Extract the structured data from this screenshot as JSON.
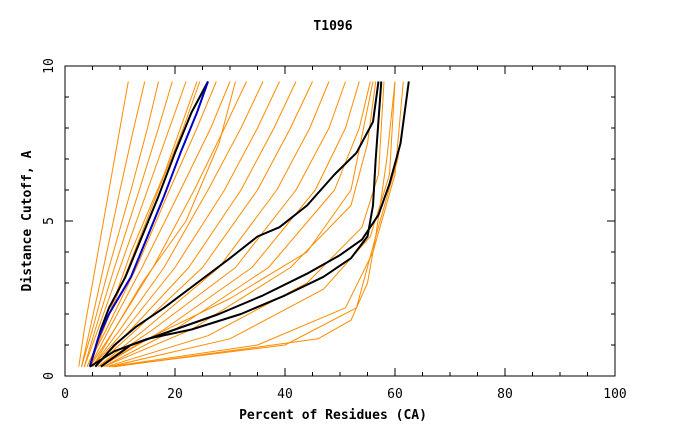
{
  "chart_data": {
    "type": "line",
    "title": "T1096",
    "xlabel": "Percent of Residues (CA)",
    "ylabel": "Distance Cutoff, A",
    "xlim": [
      0,
      100
    ],
    "ylim": [
      0,
      10
    ],
    "xticks": [
      0,
      20,
      40,
      60,
      80,
      100
    ],
    "xtick_labels": [
      "0",
      "20",
      "40",
      "60",
      "80",
      "100"
    ],
    "yticks": [
      0,
      5,
      10
    ],
    "ytick_labels": [
      "0",
      "5",
      "10"
    ],
    "grid": false,
    "colors": {
      "models": "#ff8c00",
      "highlight_black": "#000000",
      "highlight_blue": "#0000cc"
    },
    "series": [
      {
        "color": "#ff8c00",
        "points": [
          [
            2.5,
            0.3
          ],
          [
            3.5,
            1.5
          ],
          [
            5.5,
            3.5
          ],
          [
            8.0,
            6.0
          ],
          [
            10.0,
            8.0
          ],
          [
            11.5,
            9.5
          ]
        ]
      },
      {
        "color": "#ff8c00",
        "points": [
          [
            3.0,
            0.3
          ],
          [
            4.5,
            1.5
          ],
          [
            7.0,
            3.5
          ],
          [
            10.0,
            6.0
          ],
          [
            12.5,
            8.0
          ],
          [
            14.5,
            9.5
          ]
        ]
      },
      {
        "color": "#ff8c00",
        "points": [
          [
            3.0,
            0.3
          ],
          [
            5.0,
            1.5
          ],
          [
            8.0,
            3.5
          ],
          [
            12.0,
            6.0
          ],
          [
            15.0,
            8.0
          ],
          [
            17.0,
            9.5
          ]
        ]
      },
      {
        "color": "#ff8c00",
        "points": [
          [
            3.5,
            0.3
          ],
          [
            5.5,
            1.5
          ],
          [
            9.0,
            3.5
          ],
          [
            13.5,
            6.0
          ],
          [
            17.0,
            8.0
          ],
          [
            19.5,
            9.5
          ]
        ]
      },
      {
        "color": "#ff8c00",
        "points": [
          [
            3.5,
            0.3
          ],
          [
            6.0,
            1.5
          ],
          [
            10.0,
            3.5
          ],
          [
            15.0,
            6.0
          ],
          [
            19.0,
            8.0
          ],
          [
            22.0,
            9.5
          ]
        ]
      },
      {
        "color": "#ff8c00",
        "points": [
          [
            4.0,
            0.3
          ],
          [
            7.0,
            1.5
          ],
          [
            11.5,
            3.5
          ],
          [
            17.0,
            6.0
          ],
          [
            21.5,
            8.0
          ],
          [
            24.5,
            9.5
          ]
        ]
      },
      {
        "color": "#ff8c00",
        "points": [
          [
            4.0,
            0.3
          ],
          [
            7.5,
            1.5
          ],
          [
            13.0,
            3.5
          ],
          [
            19.0,
            6.0
          ],
          [
            24.0,
            8.0
          ],
          [
            27.5,
            9.5
          ]
        ]
      },
      {
        "color": "#ff8c00",
        "points": [
          [
            4.5,
            0.3
          ],
          [
            8.0,
            1.5
          ],
          [
            14.0,
            3.5
          ],
          [
            21.0,
            6.0
          ],
          [
            26.5,
            8.0
          ],
          [
            30.0,
            9.5
          ]
        ]
      },
      {
        "color": "#ff8c00",
        "points": [
          [
            4.5,
            0.3
          ],
          [
            9.0,
            1.5
          ],
          [
            16.0,
            3.5
          ],
          [
            23.5,
            6.0
          ],
          [
            29.0,
            8.0
          ],
          [
            33.0,
            9.5
          ]
        ]
      },
      {
        "color": "#ff8c00",
        "points": [
          [
            5.0,
            0.3
          ],
          [
            10.0,
            1.5
          ],
          [
            18.0,
            3.5
          ],
          [
            26.0,
            6.0
          ],
          [
            32.0,
            8.0
          ],
          [
            36.0,
            9.5
          ]
        ]
      },
      {
        "color": "#ff8c00",
        "points": [
          [
            5.0,
            0.3
          ],
          [
            11.0,
            1.5
          ],
          [
            20.0,
            3.5
          ],
          [
            29.0,
            6.0
          ],
          [
            35.0,
            8.0
          ],
          [
            39.0,
            9.5
          ]
        ]
      },
      {
        "color": "#ff8c00",
        "points": [
          [
            5.5,
            0.3
          ],
          [
            12.0,
            1.5
          ],
          [
            22.5,
            3.5
          ],
          [
            32.0,
            6.0
          ],
          [
            38.0,
            8.0
          ],
          [
            42.0,
            9.5
          ]
        ]
      },
      {
        "color": "#ff8c00",
        "points": [
          [
            5.5,
            0.3
          ],
          [
            13.0,
            1.5
          ],
          [
            25.0,
            3.5
          ],
          [
            35.0,
            6.0
          ],
          [
            41.0,
            8.0
          ],
          [
            45.0,
            9.5
          ]
        ]
      },
      {
        "color": "#ff8c00",
        "points": [
          [
            6.0,
            0.3
          ],
          [
            14.5,
            1.5
          ],
          [
            28.0,
            3.5
          ],
          [
            38.5,
            6.0
          ],
          [
            44.5,
            8.0
          ],
          [
            48.0,
            9.5
          ]
        ]
      },
      {
        "color": "#ff8c00",
        "points": [
          [
            6.0,
            0.3
          ],
          [
            16.0,
            1.5
          ],
          [
            31.0,
            3.5
          ],
          [
            42.0,
            6.0
          ],
          [
            48.0,
            8.0
          ],
          [
            51.0,
            9.5
          ]
        ]
      },
      {
        "color": "#ff8c00",
        "points": [
          [
            6.5,
            0.3
          ],
          [
            18.0,
            1.5
          ],
          [
            34.0,
            3.5
          ],
          [
            45.5,
            6.0
          ],
          [
            51.0,
            8.0
          ],
          [
            53.5,
            9.5
          ]
        ]
      },
      {
        "color": "#ff8c00",
        "points": [
          [
            7.0,
            0.3
          ],
          [
            20.0,
            1.5
          ],
          [
            37.0,
            3.5
          ],
          [
            49.0,
            6.0
          ],
          [
            53.5,
            8.0
          ],
          [
            55.5,
            9.5
          ]
        ]
      },
      {
        "color": "#ff8c00",
        "points": [
          [
            7.0,
            0.3
          ],
          [
            23.0,
            1.5
          ],
          [
            41.0,
            3.5
          ],
          [
            52.0,
            5.5
          ],
          [
            55.0,
            7.5
          ],
          [
            56.5,
            9.5
          ]
        ]
      },
      {
        "color": "#ff8c00",
        "points": [
          [
            7.5,
            0.3
          ],
          [
            26.0,
            1.3
          ],
          [
            44.0,
            3.0
          ],
          [
            54.0,
            4.8
          ],
          [
            57.0,
            6.5
          ],
          [
            58.0,
            9.5
          ]
        ]
      },
      {
        "color": "#ff8c00",
        "points": [
          [
            8.0,
            0.3
          ],
          [
            30.0,
            1.2
          ],
          [
            47.0,
            2.8
          ],
          [
            55.5,
            4.5
          ],
          [
            59.0,
            6.5
          ],
          [
            60.0,
            9.5
          ]
        ]
      },
      {
        "color": "#ff8c00",
        "points": [
          [
            8.0,
            0.3
          ],
          [
            35.0,
            1.0
          ],
          [
            51.0,
            2.2
          ],
          [
            56.0,
            4.0
          ],
          [
            60.0,
            6.5
          ],
          [
            61.5,
            9.5
          ]
        ]
      },
      {
        "color": "#ff8c00",
        "points": [
          [
            8.5,
            0.3
          ],
          [
            40.0,
            1.0
          ],
          [
            53.0,
            2.2
          ],
          [
            56.5,
            4.5
          ],
          [
            60.5,
            7.0
          ],
          [
            62.5,
            9.5
          ]
        ]
      },
      {
        "color": "#ff8c00",
        "points": [
          [
            9.0,
            0.3
          ],
          [
            46.0,
            1.2
          ],
          [
            52.0,
            1.8
          ],
          [
            55.0,
            3.0
          ],
          [
            56.5,
            4.5
          ],
          [
            58.5,
            7.0
          ],
          [
            60.0,
            9.5
          ]
        ]
      },
      {
        "color": "#ff8c00",
        "points": [
          [
            6.0,
            0.3
          ],
          [
            15.0,
            1.2
          ],
          [
            30.0,
            2.5
          ],
          [
            44.0,
            4.0
          ],
          [
            52.0,
            6.0
          ],
          [
            56.0,
            9.5
          ]
        ]
      },
      {
        "color": "#ff8c00",
        "points": [
          [
            5.0,
            0.3
          ],
          [
            9.0,
            1.5
          ],
          [
            14.0,
            3.0
          ],
          [
            22.0,
            5.0
          ],
          [
            28.0,
            7.5
          ],
          [
            31.0,
            9.5
          ]
        ]
      },
      {
        "color": "#ff8c00",
        "points": [
          [
            4.5,
            0.3
          ],
          [
            8.0,
            2.0
          ],
          [
            12.0,
            4.0
          ],
          [
            18.0,
            6.5
          ],
          [
            22.0,
            8.5
          ],
          [
            24.0,
            9.5
          ]
        ]
      },
      {
        "color": "#000000",
        "points": [
          [
            4.5,
            0.3
          ],
          [
            6.5,
            1.5
          ],
          [
            8.0,
            2.2
          ],
          [
            11.0,
            3.2
          ],
          [
            14.0,
            4.5
          ],
          [
            17.0,
            5.8
          ],
          [
            20.0,
            7.2
          ],
          [
            23.0,
            8.5
          ],
          [
            26.0,
            9.5
          ]
        ]
      },
      {
        "color": "#0000cc",
        "points": [
          [
            4.5,
            0.3
          ],
          [
            6.0,
            1.2
          ],
          [
            8.0,
            2.0
          ],
          [
            12.0,
            3.2
          ],
          [
            15.0,
            4.5
          ],
          [
            18.0,
            5.8
          ],
          [
            21.0,
            7.2
          ],
          [
            24.0,
            8.5
          ],
          [
            26.0,
            9.5
          ]
        ]
      },
      {
        "color": "#000000",
        "points": [
          [
            5.5,
            0.3
          ],
          [
            9.0,
            1.0
          ],
          [
            13.0,
            1.6
          ],
          [
            18.0,
            2.2
          ],
          [
            24.0,
            3.0
          ],
          [
            30.0,
            3.8
          ],
          [
            35.0,
            4.5
          ],
          [
            39.0,
            4.8
          ],
          [
            44.0,
            5.5
          ],
          [
            49.0,
            6.5
          ],
          [
            53.0,
            7.2
          ],
          [
            56.0,
            8.2
          ],
          [
            57.0,
            9.5
          ]
        ]
      },
      {
        "color": "#000000",
        "points": [
          [
            6.5,
            0.3
          ],
          [
            12.0,
            1.0
          ],
          [
            20.0,
            1.5
          ],
          [
            28.0,
            2.0
          ],
          [
            36.0,
            2.6
          ],
          [
            44.0,
            3.3
          ],
          [
            50.0,
            3.9
          ],
          [
            54.0,
            4.4
          ],
          [
            57.0,
            5.2
          ],
          [
            59.0,
            6.2
          ],
          [
            61.0,
            7.5
          ],
          [
            62.5,
            9.5
          ]
        ]
      },
      {
        "color": "#000000",
        "points": [
          [
            4.5,
            0.3
          ],
          [
            9.0,
            0.8
          ],
          [
            15.0,
            1.2
          ],
          [
            23.0,
            1.5
          ],
          [
            32.0,
            2.0
          ],
          [
            40.0,
            2.6
          ],
          [
            47.0,
            3.2
          ],
          [
            52.0,
            3.8
          ],
          [
            55.0,
            4.5
          ],
          [
            56.0,
            5.5
          ],
          [
            56.5,
            7.0
          ],
          [
            57.5,
            9.5
          ]
        ]
      }
    ]
  }
}
